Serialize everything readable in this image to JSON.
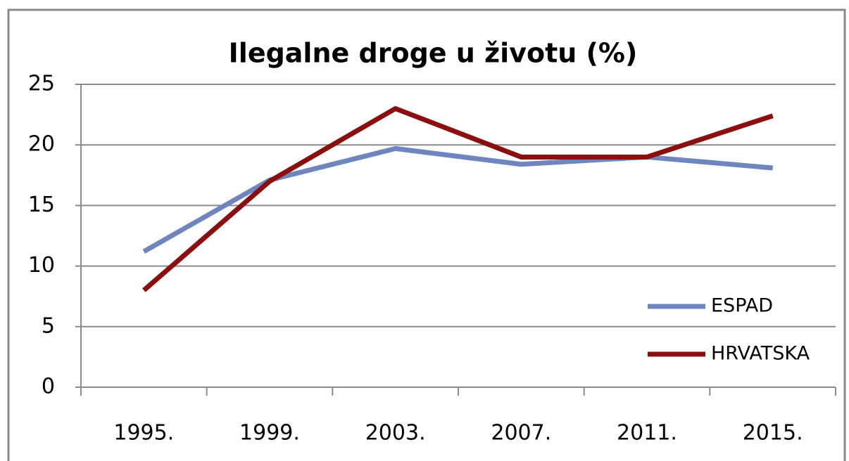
{
  "chart_data": {
    "type": "line",
    "title": "Ilegalne  droge u životu (%)",
    "categories": [
      "1995.",
      "1999.",
      "2003.",
      "2007.",
      "2011.",
      "2015."
    ],
    "series": [
      {
        "name": "ESPAD",
        "color": "#6f85be",
        "values": [
          11.2,
          17.1,
          19.7,
          18.4,
          19.0,
          18.1
        ]
      },
      {
        "name": "HRVATSKA",
        "color": "#8c0f10",
        "values": [
          8.0,
          17.0,
          23.0,
          19.0,
          19.0,
          22.4
        ]
      }
    ],
    "ylim": [
      0,
      25
    ],
    "yticks": [
      0,
      5,
      10,
      15,
      20,
      25
    ],
    "grid": true,
    "legend": "lower right"
  }
}
